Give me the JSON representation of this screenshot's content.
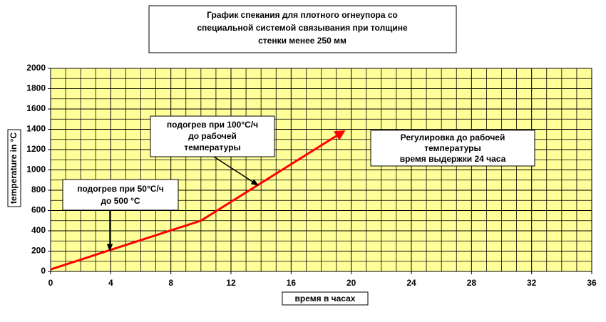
{
  "chart_data": {
    "type": "line",
    "title": [
      "График спекания для плотного огнеупора со",
      "специальной системой связывания при толщине",
      "стенки менее 250 мм"
    ],
    "x_label": "время в часах",
    "y_label": "temperature in °C",
    "x": [
      0,
      10,
      19.5
    ],
    "series": [
      {
        "name": null,
        "color": "#ff0000",
        "values": [
          20,
          500,
          1380
        ]
      }
    ],
    "xlim": [
      0,
      36
    ],
    "xticks": [
      0,
      4,
      8,
      12,
      16,
      20,
      24,
      28,
      32,
      36
    ],
    "ylim": [
      0,
      2000
    ],
    "yticks": [
      0,
      200,
      400,
      600,
      800,
      1000,
      1200,
      1400,
      1600,
      1800,
      2000
    ],
    "grid": true,
    "background": "#ffff99",
    "annotations": [
      [
        "подогрев при 50°C/ч",
        "до 500 °C"
      ],
      [
        "подогрев при 100°C/ч",
        "до рабочей",
        "температуры"
      ],
      [
        "Регулировка до рабочей",
        "температуры",
        "время выдержки 24 часа"
      ]
    ]
  }
}
